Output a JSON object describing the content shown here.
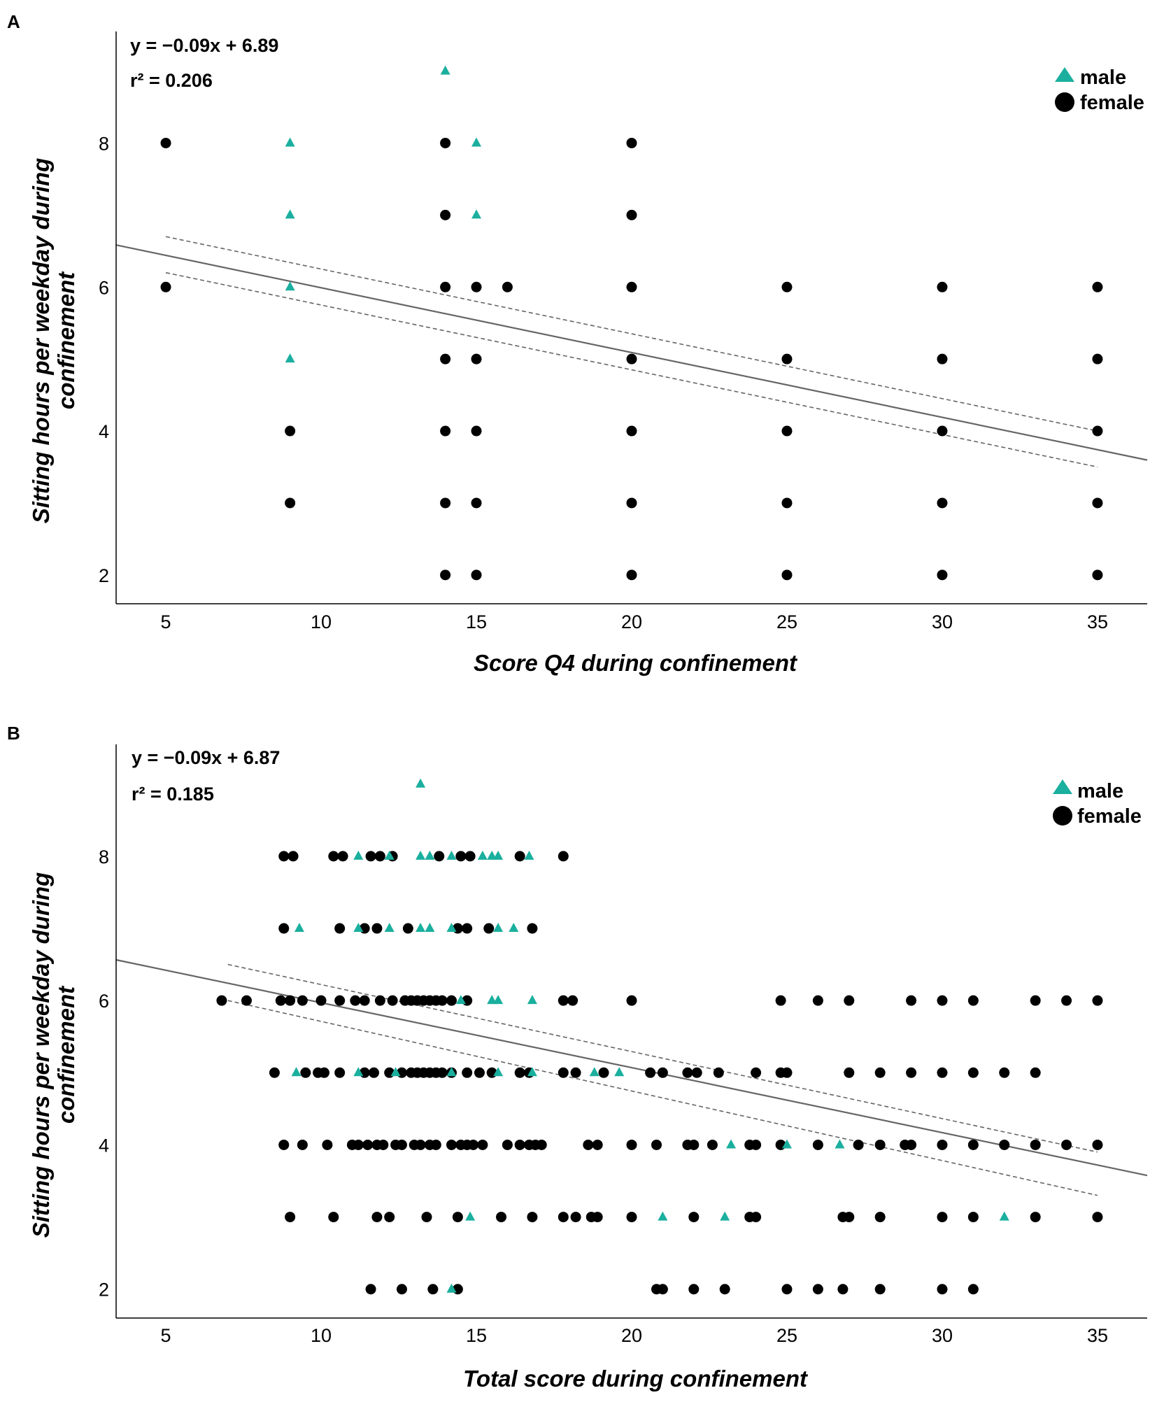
{
  "colors": {
    "male": "#1aaf9e",
    "female": "#000000",
    "fit": "#666666",
    "ci": "#666666",
    "axis": "#000000"
  },
  "chart_data": [
    {
      "type": "scatter",
      "panel": "A",
      "xlabel": "Score Q4 during confinement",
      "ylabel": [
        "Sitting hours per weekday during",
        "confinement"
      ],
      "xlim": [
        3.4,
        36.6
      ],
      "ylim": [
        1.6,
        9.55
      ],
      "xticks": [
        5,
        10,
        15,
        20,
        25,
        30,
        35
      ],
      "yticks": [
        2,
        4,
        6,
        8
      ],
      "equation": "y = −0.09x + 6.89",
      "r2": "r² = 0.206",
      "legend": [
        {
          "name": "male",
          "marker": "triangle"
        },
        {
          "name": "female",
          "marker": "circle"
        }
      ],
      "fit": {
        "slope": -0.09,
        "intercept": 6.89,
        "x_range": [
          3.4,
          36.6
        ]
      },
      "ci_upper": [
        [
          5,
          6.7
        ],
        [
          35,
          4.0
        ]
      ],
      "ci_lower": [
        [
          5,
          6.2
        ],
        [
          35,
          3.5
        ]
      ],
      "series": [
        {
          "name": "male",
          "marker": "triangle",
          "points": [
            [
              9,
              8
            ],
            [
              9,
              7
            ],
            [
              9,
              6
            ],
            [
              9,
              5
            ],
            [
              14,
              9
            ],
            [
              15,
              8
            ],
            [
              15,
              7
            ]
          ]
        },
        {
          "name": "female",
          "marker": "circle",
          "points": [
            [
              5,
              8
            ],
            [
              5,
              6
            ],
            [
              9,
              4
            ],
            [
              9,
              3
            ],
            [
              14,
              8
            ],
            [
              14,
              7
            ],
            [
              14,
              6
            ],
            [
              14,
              5
            ],
            [
              14,
              4
            ],
            [
              14,
              3
            ],
            [
              14,
              2
            ],
            [
              15,
              6
            ],
            [
              15,
              5
            ],
            [
              15,
              4
            ],
            [
              15,
              3
            ],
            [
              15,
              2
            ],
            [
              16,
              6
            ],
            [
              20,
              8
            ],
            [
              20,
              7
            ],
            [
              20,
              6
            ],
            [
              20,
              5
            ],
            [
              20,
              4
            ],
            [
              20,
              3
            ],
            [
              20,
              2
            ],
            [
              25,
              6
            ],
            [
              25,
              5
            ],
            [
              25,
              4
            ],
            [
              25,
              3
            ],
            [
              25,
              2
            ],
            [
              30,
              6
            ],
            [
              30,
              5
            ],
            [
              30,
              4
            ],
            [
              30,
              3
            ],
            [
              30,
              2
            ],
            [
              35,
              6
            ],
            [
              35,
              5
            ],
            [
              35,
              4
            ],
            [
              35,
              3
            ],
            [
              35,
              2
            ]
          ]
        }
      ]
    },
    {
      "type": "scatter",
      "panel": "B",
      "xlabel": "Total score during confinement",
      "ylabel": [
        "Sitting hours per weekday during",
        "confinement"
      ],
      "xlim": [
        3.4,
        36.6
      ],
      "ylim": [
        1.6,
        9.55
      ],
      "xticks": [
        5,
        10,
        15,
        20,
        25,
        30,
        35
      ],
      "yticks": [
        2,
        4,
        6,
        8
      ],
      "equation": "y = −0.09x + 6.87",
      "r2": "r² = 0.185",
      "legend": [
        {
          "name": "male",
          "marker": "triangle"
        },
        {
          "name": "female",
          "marker": "circle"
        }
      ],
      "fit": {
        "slope": -0.09,
        "intercept": 6.87,
        "x_range": [
          3.4,
          36.6
        ]
      },
      "ci_upper": [
        [
          7,
          6.5
        ],
        [
          35,
          3.9
        ]
      ],
      "ci_lower": [
        [
          7,
          6.0
        ],
        [
          35,
          3.3
        ]
      ],
      "series": [
        {
          "name": "male",
          "marker": "triangle",
          "points": [
            [
              13.2,
              9
            ],
            [
              11.2,
              8
            ],
            [
              12.2,
              8
            ],
            [
              13.2,
              8
            ],
            [
              13.5,
              8
            ],
            [
              14.2,
              8
            ],
            [
              15.2,
              8
            ],
            [
              15.5,
              8
            ],
            [
              15.7,
              8
            ],
            [
              16.7,
              8
            ],
            [
              9.3,
              7
            ],
            [
              11.2,
              7
            ],
            [
              12.2,
              7
            ],
            [
              13.2,
              7
            ],
            [
              13.5,
              7
            ],
            [
              14.2,
              7
            ],
            [
              15.7,
              7
            ],
            [
              16.2,
              7
            ],
            [
              14.5,
              6
            ],
            [
              15.5,
              6
            ],
            [
              15.7,
              6
            ],
            [
              16.8,
              6
            ],
            [
              9.2,
              5
            ],
            [
              11.2,
              5
            ],
            [
              12.4,
              5
            ],
            [
              14.2,
              5
            ],
            [
              15.7,
              5
            ],
            [
              16.8,
              5
            ],
            [
              18.8,
              5
            ],
            [
              19.6,
              5
            ],
            [
              23.2,
              4
            ],
            [
              25,
              4
            ],
            [
              26.7,
              4
            ],
            [
              14.8,
              3
            ],
            [
              21,
              3
            ],
            [
              23,
              3
            ],
            [
              32,
              3
            ],
            [
              14.2,
              2
            ]
          ]
        },
        {
          "name": "female",
          "marker": "circle",
          "points": [
            [
              8.8,
              8
            ],
            [
              9.1,
              8
            ],
            [
              10.4,
              8
            ],
            [
              10.7,
              8
            ],
            [
              11.6,
              8
            ],
            [
              11.9,
              8
            ],
            [
              12.3,
              8
            ],
            [
              13.8,
              8
            ],
            [
              14.5,
              8
            ],
            [
              14.8,
              8
            ],
            [
              16.4,
              8
            ],
            [
              17.8,
              8
            ],
            [
              8.8,
              7
            ],
            [
              10.6,
              7
            ],
            [
              11.4,
              7
            ],
            [
              11.8,
              7
            ],
            [
              12.8,
              7
            ],
            [
              14.4,
              7
            ],
            [
              14.7,
              7
            ],
            [
              15.4,
              7
            ],
            [
              16.8,
              7
            ],
            [
              6.8,
              6
            ],
            [
              7.6,
              6
            ],
            [
              8.7,
              6
            ],
            [
              9,
              6
            ],
            [
              9.4,
              6
            ],
            [
              10,
              6
            ],
            [
              10.6,
              6
            ],
            [
              11.1,
              6
            ],
            [
              11.4,
              6
            ],
            [
              11.9,
              6
            ],
            [
              12.3,
              6
            ],
            [
              12.7,
              6
            ],
            [
              12.9,
              6
            ],
            [
              13.1,
              6
            ],
            [
              13.3,
              6
            ],
            [
              13.5,
              6
            ],
            [
              13.7,
              6
            ],
            [
              13.9,
              6
            ],
            [
              14.2,
              6
            ],
            [
              14.7,
              6
            ],
            [
              17.8,
              6
            ],
            [
              18.1,
              6
            ],
            [
              20,
              6
            ],
            [
              24.8,
              6
            ],
            [
              26,
              6
            ],
            [
              27,
              6
            ],
            [
              29,
              6
            ],
            [
              30,
              6
            ],
            [
              31,
              6
            ],
            [
              33,
              6
            ],
            [
              34,
              6
            ],
            [
              35,
              6
            ],
            [
              8.5,
              5
            ],
            [
              9.5,
              5
            ],
            [
              9.9,
              5
            ],
            [
              10.1,
              5
            ],
            [
              10.6,
              5
            ],
            [
              11.4,
              5
            ],
            [
              11.7,
              5
            ],
            [
              12.2,
              5
            ],
            [
              12.6,
              5
            ],
            [
              12.9,
              5
            ],
            [
              13.1,
              5
            ],
            [
              13.3,
              5
            ],
            [
              13.5,
              5
            ],
            [
              13.7,
              5
            ],
            [
              13.9,
              5
            ],
            [
              14.2,
              5
            ],
            [
              14.7,
              5
            ],
            [
              15.1,
              5
            ],
            [
              15.5,
              5
            ],
            [
              16.4,
              5
            ],
            [
              16.7,
              5
            ],
            [
              17.8,
              5
            ],
            [
              18.2,
              5
            ],
            [
              19.1,
              5
            ],
            [
              20.6,
              5
            ],
            [
              21,
              5
            ],
            [
              21.8,
              5
            ],
            [
              22.1,
              5
            ],
            [
              22.8,
              5
            ],
            [
              24,
              5
            ],
            [
              24.8,
              5
            ],
            [
              25,
              5
            ],
            [
              27,
              5
            ],
            [
              28,
              5
            ],
            [
              29,
              5
            ],
            [
              30,
              5
            ],
            [
              31,
              5
            ],
            [
              32,
              5
            ],
            [
              33,
              5
            ],
            [
              8.8,
              4
            ],
            [
              9.4,
              4
            ],
            [
              10.2,
              4
            ],
            [
              11,
              4
            ],
            [
              11.2,
              4
            ],
            [
              11.5,
              4
            ],
            [
              11.8,
              4
            ],
            [
              12,
              4
            ],
            [
              12.4,
              4
            ],
            [
              12.6,
              4
            ],
            [
              13,
              4
            ],
            [
              13.2,
              4
            ],
            [
              13.5,
              4
            ],
            [
              13.7,
              4
            ],
            [
              14.2,
              4
            ],
            [
              14.5,
              4
            ],
            [
              14.7,
              4
            ],
            [
              14.9,
              4
            ],
            [
              15.2,
              4
            ],
            [
              16,
              4
            ],
            [
              16.4,
              4
            ],
            [
              16.7,
              4
            ],
            [
              16.9,
              4
            ],
            [
              17.1,
              4
            ],
            [
              18.6,
              4
            ],
            [
              18.9,
              4
            ],
            [
              20,
              4
            ],
            [
              20.8,
              4
            ],
            [
              21.8,
              4
            ],
            [
              22,
              4
            ],
            [
              22.6,
              4
            ],
            [
              23.8,
              4
            ],
            [
              24,
              4
            ],
            [
              24.8,
              4
            ],
            [
              26,
              4
            ],
            [
              27.3,
              4
            ],
            [
              28,
              4
            ],
            [
              28.8,
              4
            ],
            [
              29,
              4
            ],
            [
              30,
              4
            ],
            [
              31,
              4
            ],
            [
              32,
              4
            ],
            [
              33,
              4
            ],
            [
              34,
              4
            ],
            [
              35,
              4
            ],
            [
              9,
              3
            ],
            [
              10.4,
              3
            ],
            [
              11.8,
              3
            ],
            [
              12.2,
              3
            ],
            [
              13.4,
              3
            ],
            [
              14.4,
              3
            ],
            [
              15.8,
              3
            ],
            [
              16.8,
              3
            ],
            [
              17.8,
              3
            ],
            [
              18.2,
              3
            ],
            [
              18.7,
              3
            ],
            [
              18.9,
              3
            ],
            [
              20,
              3
            ],
            [
              22,
              3
            ],
            [
              23.8,
              3
            ],
            [
              24,
              3
            ],
            [
              26.8,
              3
            ],
            [
              27,
              3
            ],
            [
              28,
              3
            ],
            [
              30,
              3
            ],
            [
              31,
              3
            ],
            [
              33,
              3
            ],
            [
              35,
              3
            ],
            [
              11.6,
              2
            ],
            [
              12.6,
              2
            ],
            [
              13.6,
              2
            ],
            [
              14.4,
              2
            ],
            [
              20.8,
              2
            ],
            [
              21,
              2
            ],
            [
              22,
              2
            ],
            [
              23,
              2
            ],
            [
              25,
              2
            ],
            [
              26,
              2
            ],
            [
              26.8,
              2
            ],
            [
              28,
              2
            ],
            [
              30,
              2
            ],
            [
              31,
              2
            ]
          ]
        }
      ]
    }
  ]
}
